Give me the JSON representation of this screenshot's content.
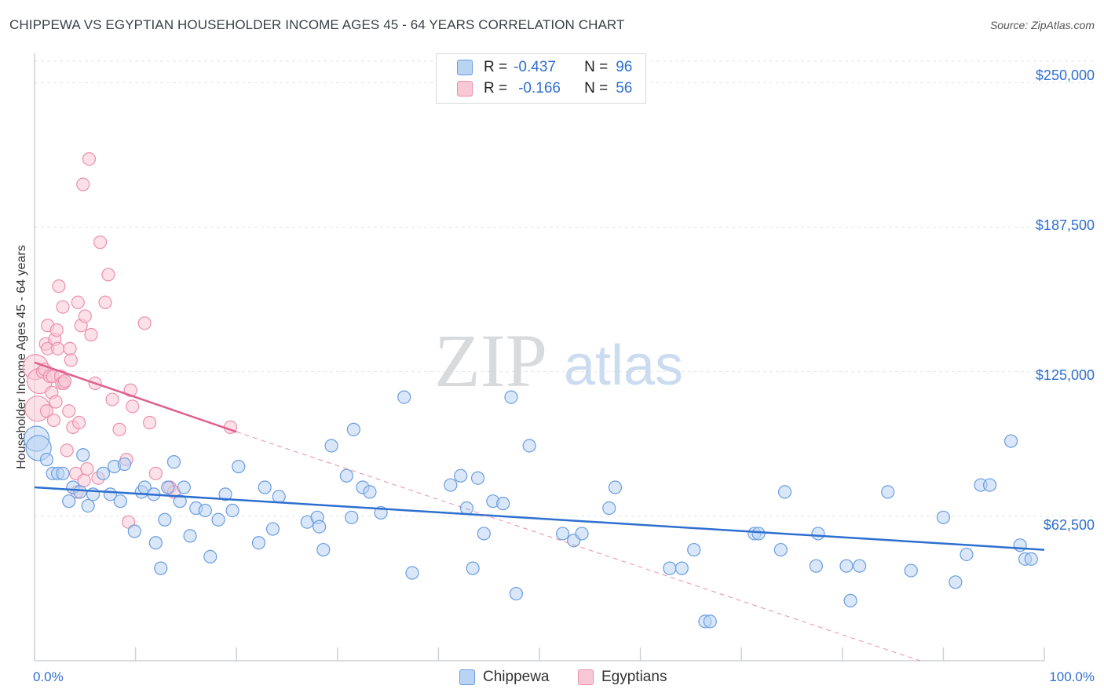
{
  "header": {
    "title": "CHIPPEWA VS EGYPTIAN HOUSEHOLDER INCOME AGES 45 - 64 YEARS CORRELATION CHART",
    "source": "Source: ZipAtlas.com"
  },
  "watermark": {
    "zip": "ZIP",
    "atlas": "atlas"
  },
  "legend": {
    "r_label": "R =",
    "n_label": "N =",
    "rows": [
      {
        "r": "-0.437",
        "n": "96",
        "color": "#8fb8ec"
      },
      {
        "r": "-0.166",
        "n": "56",
        "color": "#f4a9c0"
      }
    ]
  },
  "colors": {
    "chippewa_fill": "#b9d3f3",
    "chippewa_stroke": "#6b9de0",
    "chippewa_line": "#2e6fcf",
    "egypt_fill": "#f9c8d6",
    "egypt_stroke": "#ec8fae",
    "egypt_line": "#e05f8e",
    "axis_text": "#2e6fcf"
  },
  "chart_data": {
    "type": "scatter",
    "title": "CHIPPEWA VS EGYPTIAN HOUSEHOLDER INCOME AGES 45 - 64 YEARS CORRELATION CHART",
    "xlabel": "",
    "ylabel": "Householder Income Ages 45 - 64 years",
    "xlim": [
      0,
      100
    ],
    "ylim": [
      0,
      262000
    ],
    "x_tick_labels": [
      "0.0%",
      "100.0%"
    ],
    "y_ticks": [
      62500,
      125000,
      187500,
      250000
    ],
    "y_tick_labels": [
      "$62,500",
      "$125,000",
      "$187,500",
      "$250,000"
    ],
    "grid": true,
    "series": [
      {
        "name": "Chippewa",
        "r": -0.437,
        "n": 96,
        "trend": {
          "x": [
            0,
            100
          ],
          "y": [
            75000,
            48000
          ]
        },
        "points": [
          [
            0.2,
            96000
          ],
          [
            0.4,
            92000
          ],
          [
            1.2,
            87000
          ],
          [
            1.8,
            81000
          ],
          [
            2.3,
            81000
          ],
          [
            2.8,
            81000
          ],
          [
            3.4,
            69000
          ],
          [
            3.8,
            75000
          ],
          [
            4.5,
            73000
          ],
          [
            4.8,
            89000
          ],
          [
            5.3,
            67000
          ],
          [
            5.8,
            72000
          ],
          [
            6.8,
            81000
          ],
          [
            7.5,
            72000
          ],
          [
            7.9,
            84000
          ],
          [
            8.5,
            69000
          ],
          [
            8.9,
            85000
          ],
          [
            9.9,
            56000
          ],
          [
            10.6,
            73000
          ],
          [
            10.9,
            75000
          ],
          [
            11.8,
            72000
          ],
          [
            12.0,
            51000
          ],
          [
            12.5,
            40000
          ],
          [
            12.9,
            61000
          ],
          [
            13.2,
            75000
          ],
          [
            13.8,
            86000
          ],
          [
            14.4,
            69000
          ],
          [
            14.8,
            75000
          ],
          [
            15.4,
            54000
          ],
          [
            16.0,
            66000
          ],
          [
            16.9,
            65000
          ],
          [
            17.4,
            45000
          ],
          [
            18.2,
            61000
          ],
          [
            18.9,
            72000
          ],
          [
            19.6,
            65000
          ],
          [
            20.2,
            84000
          ],
          [
            22.2,
            51000
          ],
          [
            22.8,
            75000
          ],
          [
            23.6,
            57000
          ],
          [
            24.2,
            71000
          ],
          [
            27.0,
            60000
          ],
          [
            28.0,
            62000
          ],
          [
            28.2,
            58000
          ],
          [
            28.6,
            48000
          ],
          [
            29.4,
            93000
          ],
          [
            30.9,
            80000
          ],
          [
            31.4,
            62000
          ],
          [
            31.6,
            100000
          ],
          [
            32.5,
            75000
          ],
          [
            33.2,
            73000
          ],
          [
            34.3,
            64000
          ],
          [
            36.6,
            114000
          ],
          [
            37.4,
            38000
          ],
          [
            41.2,
            76000
          ],
          [
            42.2,
            80000
          ],
          [
            42.8,
            66000
          ],
          [
            43.4,
            40000
          ],
          [
            43.9,
            79000
          ],
          [
            44.5,
            55000
          ],
          [
            45.4,
            69000
          ],
          [
            46.4,
            68000
          ],
          [
            47.2,
            114000
          ],
          [
            47.7,
            29000
          ],
          [
            49.0,
            93000
          ],
          [
            52.3,
            55000
          ],
          [
            53.4,
            52000
          ],
          [
            54.2,
            55000
          ],
          [
            56.9,
            66000
          ],
          [
            57.5,
            75000
          ],
          [
            62.9,
            40000
          ],
          [
            64.1,
            40000
          ],
          [
            65.3,
            48000
          ],
          [
            66.4,
            17000
          ],
          [
            66.9,
            17000
          ],
          [
            71.3,
            55000
          ],
          [
            71.7,
            55000
          ],
          [
            73.9,
            48000
          ],
          [
            74.3,
            73000
          ],
          [
            77.4,
            41000
          ],
          [
            77.6,
            55000
          ],
          [
            80.4,
            41000
          ],
          [
            80.8,
            26000
          ],
          [
            81.7,
            41000
          ],
          [
            84.5,
            73000
          ],
          [
            86.8,
            39000
          ],
          [
            90.0,
            62000
          ],
          [
            91.2,
            34000
          ],
          [
            92.3,
            46000
          ],
          [
            93.7,
            76000
          ],
          [
            94.6,
            76000
          ],
          [
            96.7,
            95000
          ],
          [
            97.6,
            50000
          ],
          [
            98.1,
            44000
          ],
          [
            98.7,
            44000
          ]
        ]
      },
      {
        "name": "Egyptians",
        "r": -0.166,
        "n": 56,
        "trend": {
          "x": [
            0,
            20
          ],
          "y": [
            129000,
            99000
          ]
        },
        "trend_extension": {
          "x": [
            20,
            100
          ],
          "y": [
            99000,
            -18000
          ]
        },
        "points": [
          [
            0.1,
            127000
          ],
          [
            0.3,
            109000
          ],
          [
            0.5,
            121000
          ],
          [
            0.8,
            125000
          ],
          [
            1.0,
            126000
          ],
          [
            1.1,
            137000
          ],
          [
            1.2,
            108000
          ],
          [
            1.3,
            145000
          ],
          [
            1.3,
            135000
          ],
          [
            1.5,
            123000
          ],
          [
            1.7,
            116000
          ],
          [
            1.8,
            123000
          ],
          [
            1.9,
            104000
          ],
          [
            2.0,
            139000
          ],
          [
            2.1,
            112000
          ],
          [
            2.2,
            143000
          ],
          [
            2.3,
            135000
          ],
          [
            2.4,
            162000
          ],
          [
            2.6,
            123000
          ],
          [
            2.7,
            120000
          ],
          [
            2.8,
            153000
          ],
          [
            2.9,
            120000
          ],
          [
            3.0,
            121000
          ],
          [
            3.2,
            91000
          ],
          [
            3.4,
            108000
          ],
          [
            3.5,
            135000
          ],
          [
            3.6,
            130000
          ],
          [
            3.8,
            101000
          ],
          [
            4.1,
            81000
          ],
          [
            4.2,
            73000
          ],
          [
            4.3,
            155000
          ],
          [
            4.4,
            103000
          ],
          [
            4.6,
            145000
          ],
          [
            4.8,
            206000
          ],
          [
            4.9,
            78000
          ],
          [
            5.0,
            149000
          ],
          [
            5.2,
            83000
          ],
          [
            5.4,
            217000
          ],
          [
            5.6,
            141000
          ],
          [
            6.0,
            120000
          ],
          [
            6.3,
            79000
          ],
          [
            6.5,
            181000
          ],
          [
            7.0,
            155000
          ],
          [
            7.3,
            167000
          ],
          [
            7.7,
            113000
          ],
          [
            8.4,
            100000
          ],
          [
            9.1,
            87000
          ],
          [
            9.3,
            60000
          ],
          [
            9.5,
            117000
          ],
          [
            9.7,
            110000
          ],
          [
            10.9,
            146000
          ],
          [
            11.4,
            103000
          ],
          [
            12.0,
            81000
          ],
          [
            13.4,
            75000
          ],
          [
            13.8,
            73000
          ],
          [
            19.4,
            101000
          ]
        ]
      }
    ]
  },
  "bottom_legend": [
    {
      "label": "Chippewa"
    },
    {
      "label": "Egyptians"
    }
  ]
}
